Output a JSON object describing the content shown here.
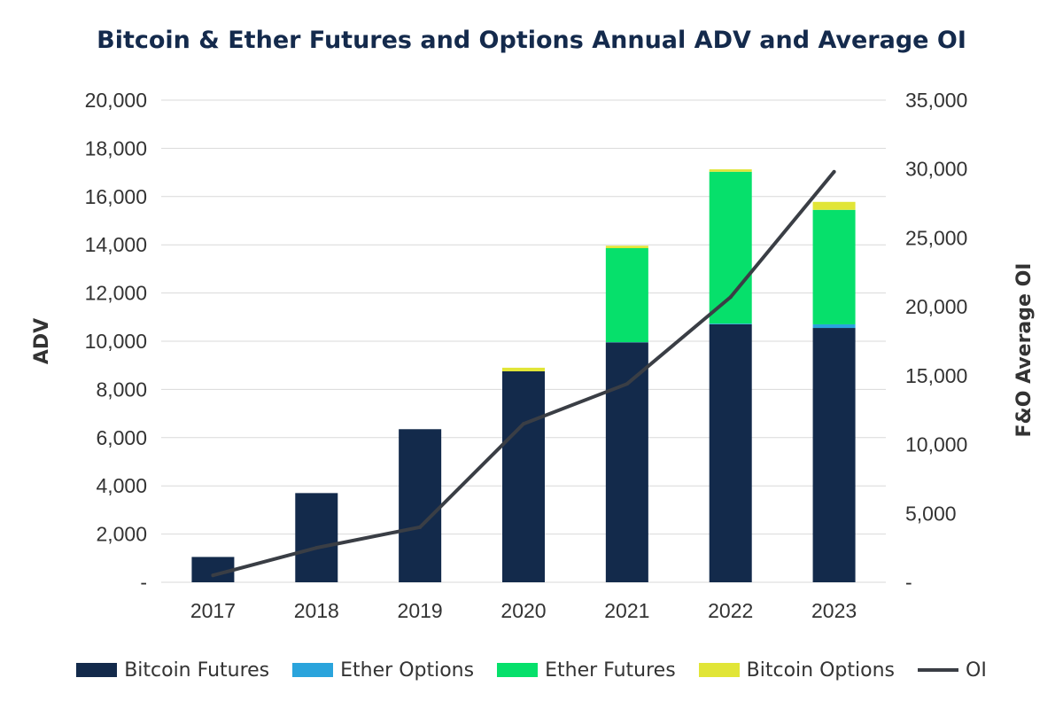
{
  "chart_data": {
    "type": "bar",
    "title": "Bitcoin & Ether Futures and Options Annual ADV and Average OI",
    "xlabel": "",
    "ylabel": "ADV",
    "y2label": "F&O Average OI",
    "categories": [
      "2017",
      "2018",
      "2019",
      "2020",
      "2021",
      "2022",
      "2023"
    ],
    "ylim": [
      0,
      20000
    ],
    "y2lim": [
      0,
      35000
    ],
    "yticks": [
      "-",
      "2,000",
      "4,000",
      "6,000",
      "8,000",
      "10,000",
      "12,000",
      "14,000",
      "16,000",
      "18,000",
      "20,000"
    ],
    "y2ticks": [
      "-",
      "5,000",
      "10,000",
      "15,000",
      "20,000",
      "25,000",
      "30,000",
      "35,000"
    ],
    "series": [
      {
        "name": "Bitcoin Futures",
        "kind": "bar",
        "color": "#132a4b",
        "values": [
          1050,
          3700,
          6350,
          8750,
          9950,
          10700,
          10550
        ]
      },
      {
        "name": "Ether Options",
        "kind": "bar",
        "color": "#2aa4dc",
        "values": [
          0,
          0,
          0,
          0,
          10,
          30,
          150
        ]
      },
      {
        "name": "Ether Futures",
        "kind": "bar",
        "color": "#06e06b",
        "values": [
          0,
          0,
          0,
          0,
          3900,
          6300,
          4750
        ]
      },
      {
        "name": "Bitcoin Options",
        "kind": "bar",
        "color": "#e1e537",
        "values": [
          0,
          0,
          0,
          150,
          100,
          100,
          330
        ]
      },
      {
        "name": "OI",
        "kind": "line",
        "axis": "right",
        "color": "#3a3e45",
        "values": [
          500,
          2500,
          4000,
          11500,
          14400,
          20700,
          29800
        ]
      }
    ],
    "grid": true,
    "legend_position": "bottom"
  }
}
